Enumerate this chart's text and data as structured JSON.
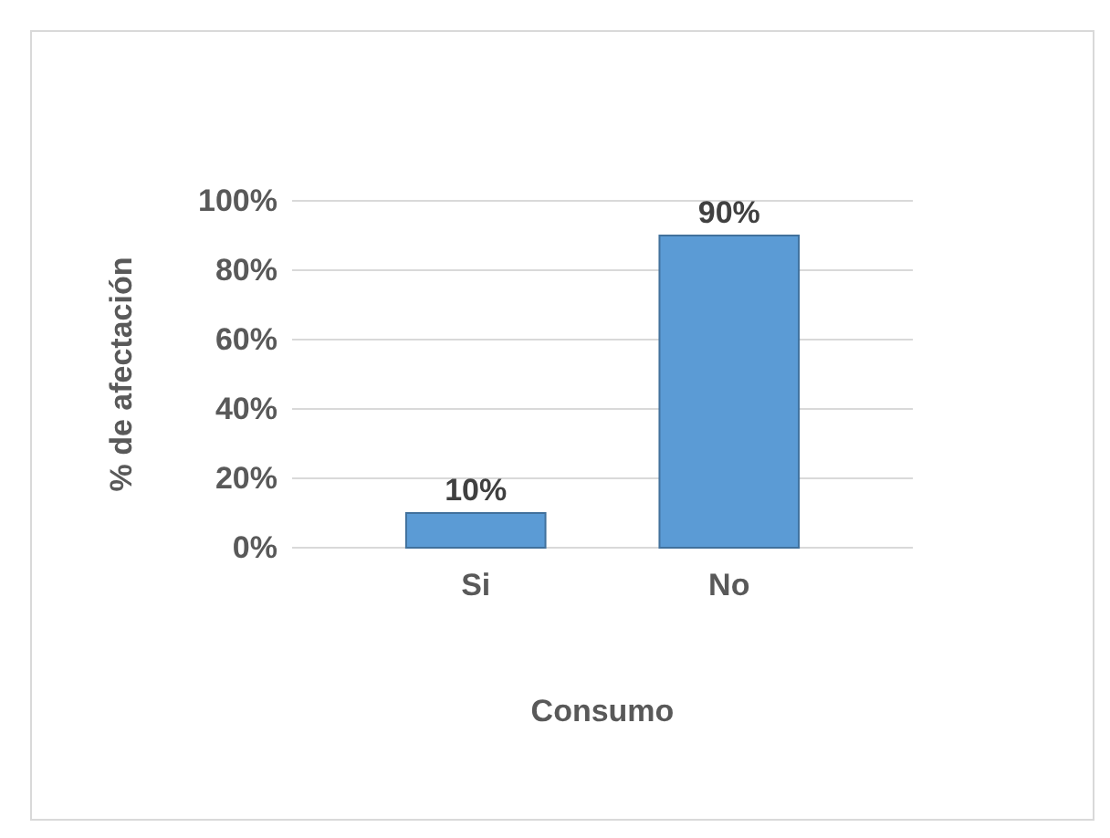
{
  "chart_data": {
    "type": "bar",
    "xlabel": "Consumo",
    "ylabel": "% de afectación",
    "categories": [
      "Si",
      "No"
    ],
    "values": [
      10,
      90
    ],
    "value_labels": [
      "10%",
      "90%"
    ],
    "color": "#5b9bd5",
    "ylim": [
      0,
      100
    ],
    "yticks": [
      {
        "value": 0,
        "label": "0%"
      },
      {
        "value": 20,
        "label": "20%"
      },
      {
        "value": 40,
        "label": "40%"
      },
      {
        "value": 60,
        "label": "60%"
      },
      {
        "value": 80,
        "label": "80%"
      },
      {
        "value": 100,
        "label": "100%"
      }
    ],
    "grid": "y"
  }
}
